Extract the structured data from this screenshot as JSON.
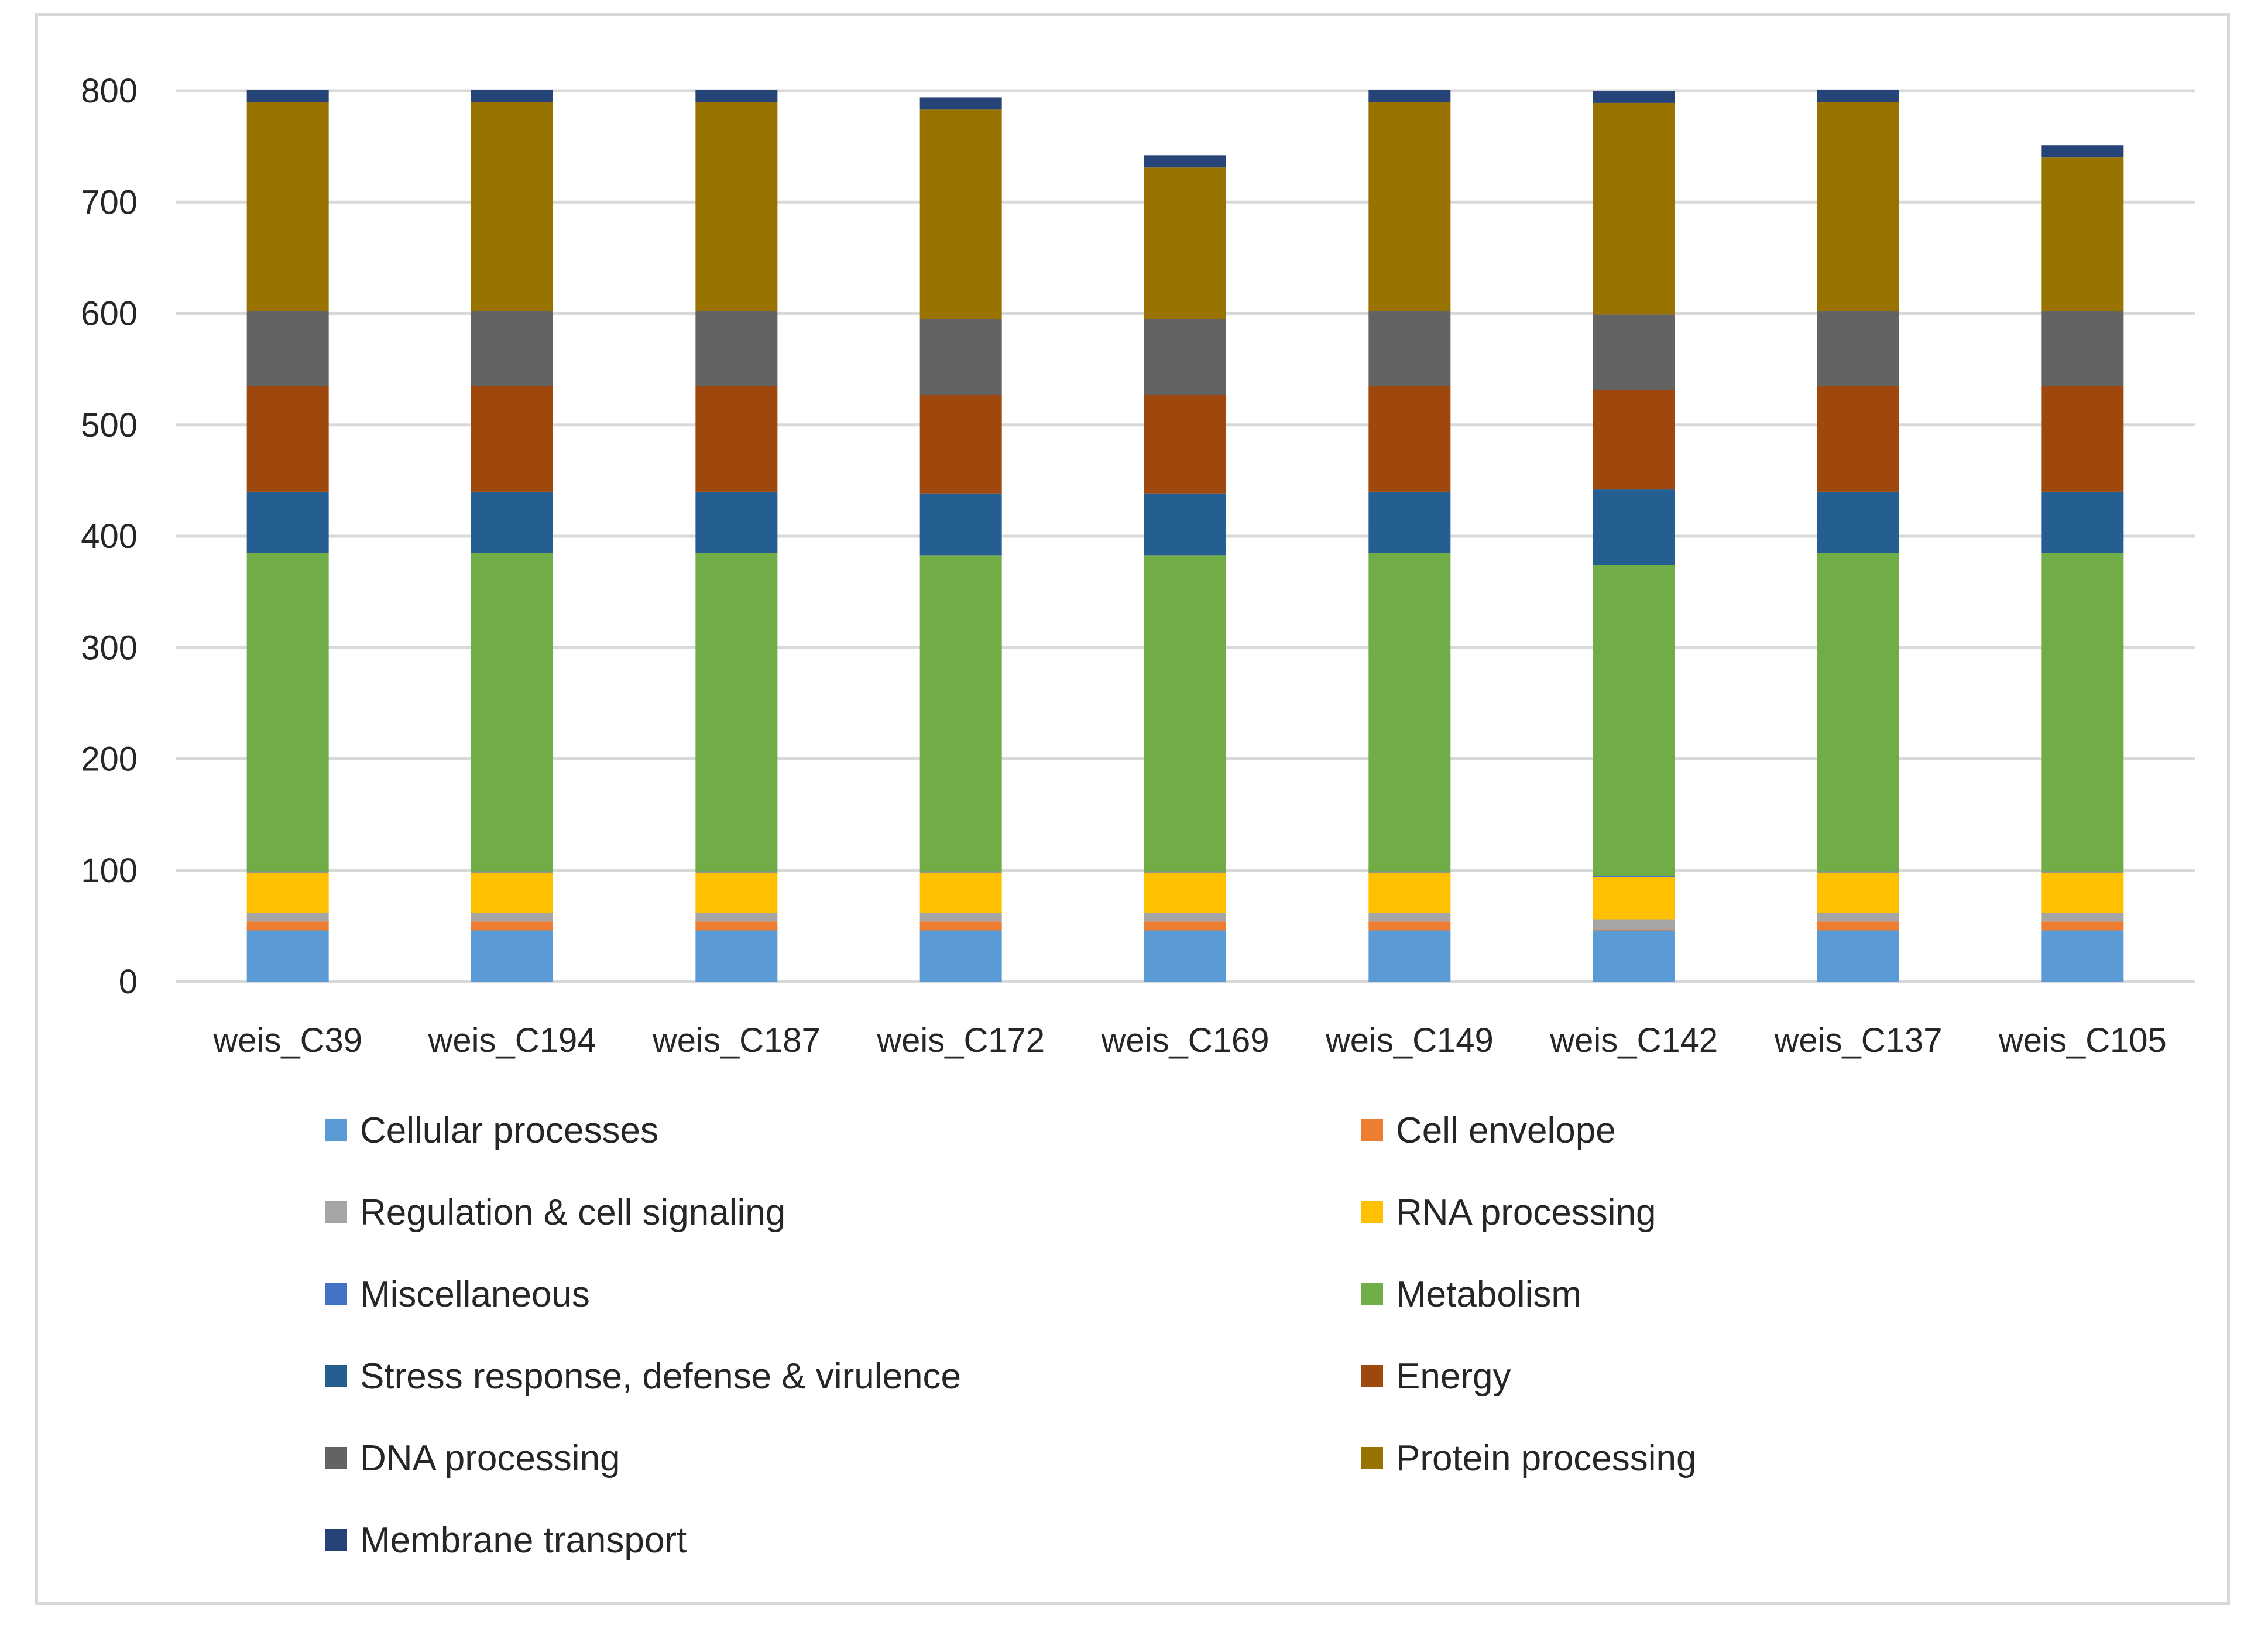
{
  "chart_data": {
    "type": "bar",
    "stacked": true,
    "title": "",
    "xlabel": "",
    "ylabel": "",
    "ylim": [
      0,
      800
    ],
    "y_ticks": [
      0,
      100,
      200,
      300,
      400,
      500,
      600,
      700,
      800
    ],
    "grid": true,
    "legend_position": "bottom",
    "categories": [
      "weis_C39",
      "weis_C194",
      "weis_C187",
      "weis_C172",
      "weis_C169",
      "weis_C149",
      "weis_C142",
      "weis_C137",
      "weis_C105"
    ],
    "series": [
      {
        "name": "Cellular processes",
        "color": "#5B9BD5",
        "values": [
          46,
          46,
          46,
          46,
          46,
          46,
          46,
          46,
          46
        ]
      },
      {
        "name": "Cell envelope",
        "color": "#ED7D31",
        "values": [
          8,
          8,
          8,
          8,
          8,
          8,
          1,
          8,
          8
        ]
      },
      {
        "name": "Regulation & cell signaling",
        "color": "#A5A5A5",
        "values": [
          8,
          8,
          8,
          8,
          8,
          8,
          9,
          8,
          8
        ]
      },
      {
        "name": "RNA processing",
        "color": "#FFC000",
        "values": [
          36,
          36,
          36,
          36,
          36,
          36,
          38,
          36,
          36
        ]
      },
      {
        "name": "Miscellaneous",
        "color": "#4472C4",
        "values": [
          1,
          1,
          1,
          1,
          1,
          1,
          1,
          1,
          1
        ]
      },
      {
        "name": "Metabolism",
        "color": "#70AD47",
        "values": [
          286,
          286,
          286,
          284,
          284,
          286,
          279,
          286,
          286
        ]
      },
      {
        "name": "Stress response, defense & virulence",
        "color": "#255E91",
        "values": [
          55,
          55,
          55,
          55,
          55,
          55,
          68,
          55,
          55
        ]
      },
      {
        "name": "Energy",
        "color": "#9E480E",
        "values": [
          95,
          95,
          95,
          89,
          89,
          95,
          89,
          95,
          95
        ]
      },
      {
        "name": "DNA processing",
        "color": "#636363",
        "values": [
          67,
          67,
          67,
          68,
          68,
          67,
          68,
          67,
          67
        ]
      },
      {
        "name": "Protein processing",
        "color": "#997300",
        "values": [
          188,
          188,
          188,
          188,
          136,
          188,
          190,
          188,
          138
        ]
      },
      {
        "name": "Membrane transport",
        "color": "#264478",
        "values": [
          11,
          11,
          11,
          11,
          11,
          11,
          11,
          11,
          11
        ]
      }
    ]
  },
  "colors": {
    "gridline": "#d9d9d9",
    "axis_text": "#262626",
    "frame_border": "#d9d9d9",
    "background": "#ffffff"
  }
}
